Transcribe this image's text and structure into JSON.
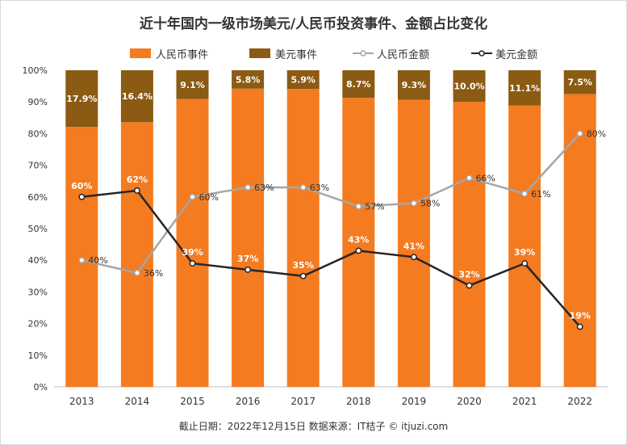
{
  "chart_data": {
    "type": "bar",
    "title": "近十年国内一级市场美元/人民币投资事件、金额占比变化",
    "categories": [
      "2013",
      "2014",
      "2015",
      "2016",
      "2017",
      "2018",
      "2019",
      "2020",
      "2021",
      "2022"
    ],
    "y_ticks": [
      "0%",
      "10%",
      "20%",
      "30%",
      "40%",
      "50%",
      "60%",
      "70%",
      "80%",
      "90%",
      "100%"
    ],
    "ylim": [
      0,
      100
    ],
    "series": [
      {
        "name": "人民币事件",
        "kind": "stacked-bar",
        "color": "#F47B20",
        "values": [
          82.1,
          83.6,
          90.9,
          94.2,
          94.1,
          91.3,
          90.7,
          90.0,
          88.9,
          92.5
        ]
      },
      {
        "name": "美元事件",
        "kind": "stacked-bar",
        "color": "#8B5A13",
        "values": [
          17.9,
          16.4,
          9.1,
          5.8,
          5.9,
          8.7,
          9.3,
          10.0,
          11.1,
          7.5
        ],
        "labels": [
          "17.9%",
          "16.4%",
          "9.1%",
          "5.8%",
          "5.9%",
          "8.7%",
          "9.3%",
          "10.0%",
          "11.1%",
          "7.5%"
        ]
      },
      {
        "name": "人民币金额",
        "kind": "line",
        "color": "#A6A6A6",
        "values": [
          40,
          36,
          60,
          63,
          63,
          57,
          58,
          66,
          61,
          80
        ],
        "labels": [
          "40%",
          "36%",
          "60%",
          "63%",
          "63%",
          "57%",
          "58%",
          "66%",
          "61%",
          "80%"
        ]
      },
      {
        "name": "美元金额",
        "kind": "line",
        "color": "#262626",
        "values": [
          60,
          62,
          39,
          37,
          35,
          43,
          41,
          32,
          39,
          19
        ],
        "labels": [
          "60%",
          "62%",
          "39%",
          "37%",
          "35%",
          "43%",
          "41%",
          "32%",
          "39%",
          "19%"
        ]
      }
    ]
  },
  "footer": "截止日期：2022年12月15日    数据来源：IT桔子 © itjuzi.com"
}
